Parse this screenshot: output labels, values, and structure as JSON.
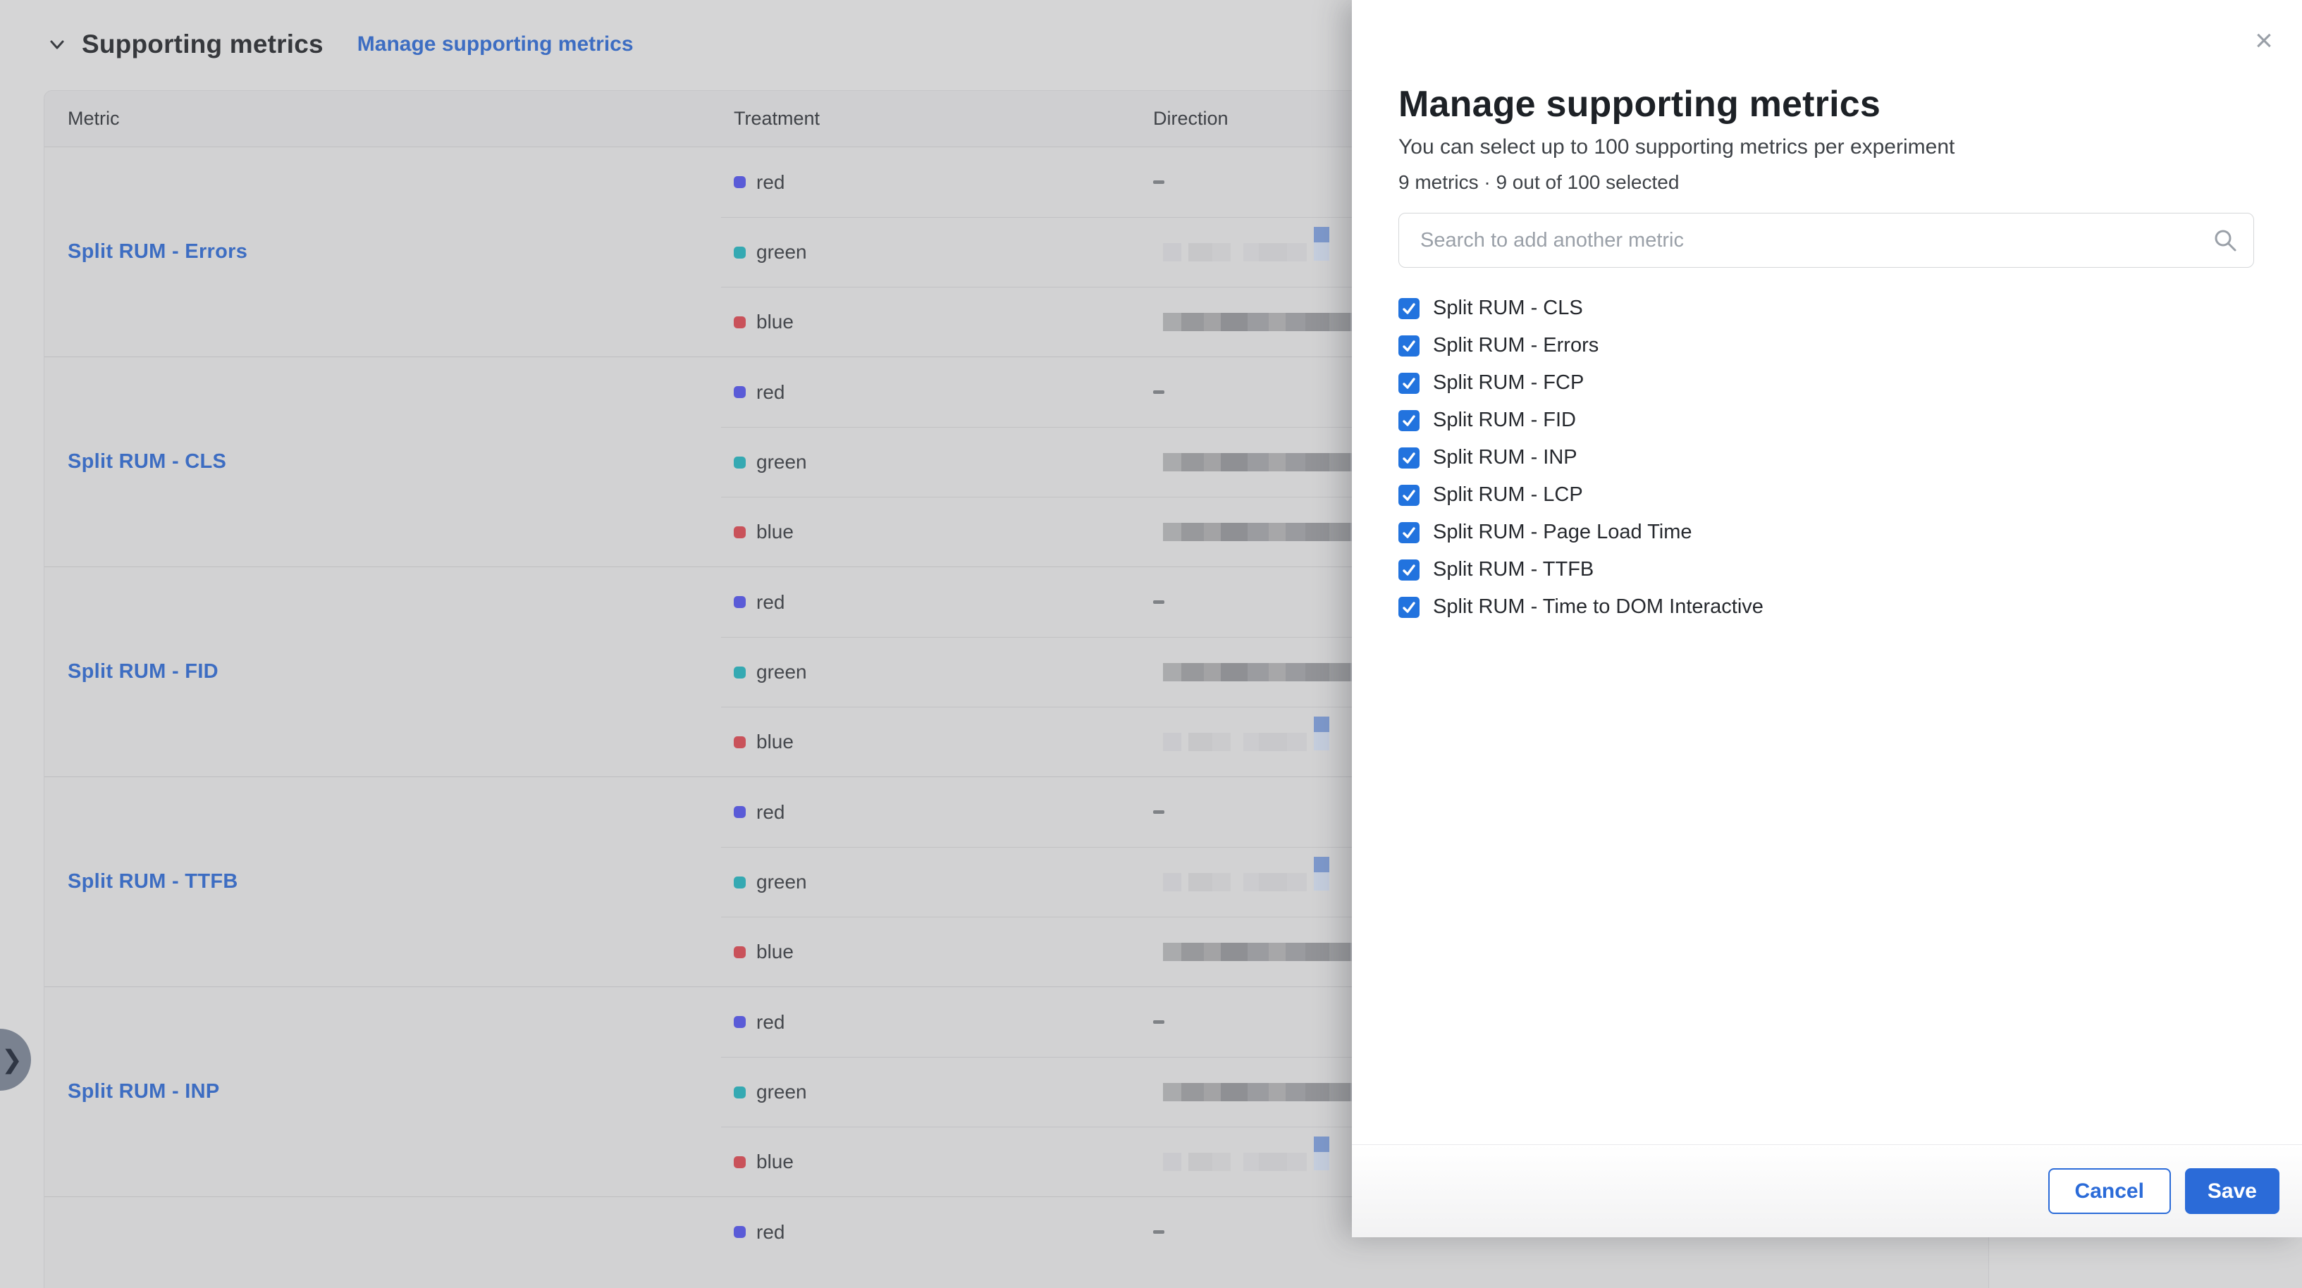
{
  "section": {
    "title": "Supporting metrics",
    "manage_link": "Manage supporting metrics"
  },
  "table": {
    "columns": [
      "Metric",
      "Treatment",
      "Direction"
    ],
    "treatment_colors": {
      "red": "#5a5bd7",
      "green": "#35a9b2",
      "blue": "#c9525a"
    },
    "groups": [
      {
        "metric": "Split RUM - Errors",
        "rows": [
          {
            "treatment": "red",
            "direction": "dash"
          },
          {
            "treatment": "green",
            "direction": "bars-faint-stack"
          },
          {
            "treatment": "blue",
            "direction": "bars-dark-tail"
          }
        ]
      },
      {
        "metric": "Split RUM - CLS",
        "rows": [
          {
            "treatment": "red",
            "direction": "dash"
          },
          {
            "treatment": "green",
            "direction": "bars-dark-tail"
          },
          {
            "treatment": "blue",
            "direction": "bars-dark"
          }
        ]
      },
      {
        "metric": "Split RUM - FID",
        "rows": [
          {
            "treatment": "red",
            "direction": "dash"
          },
          {
            "treatment": "green",
            "direction": "bars-dark"
          },
          {
            "treatment": "blue",
            "direction": "bars-faint-stack"
          }
        ]
      },
      {
        "metric": "Split RUM - TTFB",
        "rows": [
          {
            "treatment": "red",
            "direction": "dash"
          },
          {
            "treatment": "green",
            "direction": "bars-faint-stack"
          },
          {
            "treatment": "blue",
            "direction": "bars-dark-tail"
          }
        ]
      },
      {
        "metric": "Split RUM - INP",
        "rows": [
          {
            "treatment": "red",
            "direction": "dash"
          },
          {
            "treatment": "green",
            "direction": "bars-dark-tail"
          },
          {
            "treatment": "blue",
            "direction": "bars-faint-stack"
          }
        ]
      },
      {
        "metric": "",
        "rows": [
          {
            "treatment": "red",
            "direction": "dash"
          }
        ]
      }
    ]
  },
  "drawer": {
    "title": "Manage supporting metrics",
    "subtitle": "You can select up to 100 supporting metrics per experiment",
    "selection_summary": "9 metrics · 9 out of 100 selected",
    "search_placeholder": "Search to add another metric",
    "close_glyph": "×",
    "accent_color": "#2273de",
    "metrics": [
      {
        "label": "Split RUM - CLS",
        "checked": true
      },
      {
        "label": "Split RUM - Errors",
        "checked": true
      },
      {
        "label": "Split RUM - FCP",
        "checked": true
      },
      {
        "label": "Split RUM - FID",
        "checked": true
      },
      {
        "label": "Split RUM - INP",
        "checked": true
      },
      {
        "label": "Split RUM - LCP",
        "checked": true
      },
      {
        "label": "Split RUM - Page Load Time",
        "checked": true
      },
      {
        "label": "Split RUM - TTFB",
        "checked": true
      },
      {
        "label": "Split RUM - Time to DOM Interactive",
        "checked": true
      }
    ],
    "cancel_label": "Cancel",
    "save_label": "Save"
  }
}
